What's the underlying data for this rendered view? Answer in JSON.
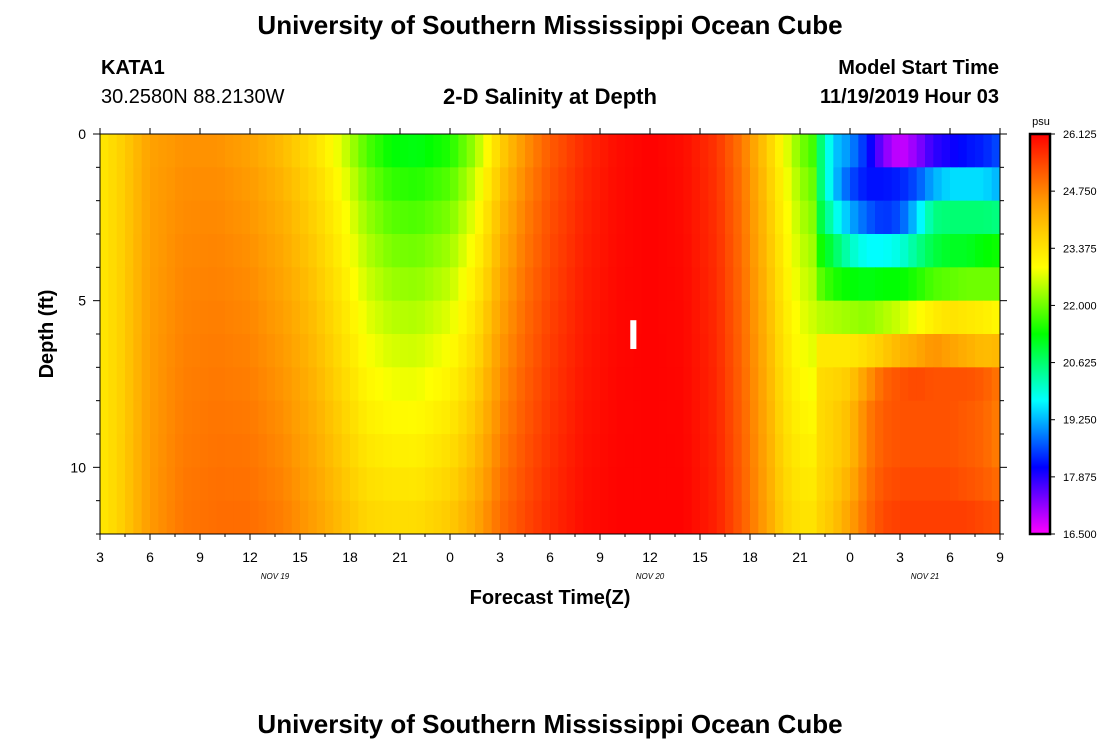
{
  "page": {
    "title_top": "University of Southern Mississippi Ocean Cube",
    "title_bottom": "University of Southern Mississippi Ocean Cube",
    "station": "KATA1",
    "coords": "30.2580N 88.2130W",
    "model_label": "Model Start Time",
    "model_time": "11/19/2019 Hour 03"
  },
  "chart_data": {
    "type": "heatmap",
    "title": "2-D Salinity at Depth",
    "xlabel": "Forecast Time(Z)",
    "ylabel": "Depth (ft)",
    "x_range": [
      0,
      54
    ],
    "x_unit": "hours since 11/19/2019 03Z",
    "x_tick_labels": [
      "3",
      "6",
      "9",
      "12",
      "15",
      "18",
      "21",
      "0",
      "3",
      "6",
      "9",
      "12",
      "15",
      "18",
      "21",
      "0",
      "3",
      "6",
      "9"
    ],
    "date_labels": [
      {
        "text": "NOV 19",
        "hour": 10.5
      },
      {
        "text": "NOV 20",
        "hour": 33
      },
      {
        "text": "NOV 21",
        "hour": 49.5
      }
    ],
    "y_range": [
      0,
      12
    ],
    "y_tick_labels": [
      "0",
      "5",
      "10"
    ],
    "y_tick_values": [
      0,
      5,
      10
    ],
    "marker": {
      "text": "I",
      "hour": 32,
      "depth": 6
    },
    "colorbar": {
      "unit": "psu",
      "min": 16.5,
      "max": 26.125,
      "labels": [
        "26.125",
        "24.750",
        "23.375",
        "22.000",
        "20.625",
        "19.250",
        "17.875",
        "16.500"
      ],
      "colors": [
        "#ff00ff",
        "#8000ff",
        "#0000ff",
        "#0080ff",
        "#00ffff",
        "#00ff80",
        "#00ff00",
        "#80ff00",
        "#ffff00",
        "#ffd000",
        "#ff9900",
        "#ff5000",
        "#ff0000"
      ]
    },
    "depth_levels_ft": [
      0.5,
      1.5,
      2.5,
      3.5,
      4.5,
      5.5,
      6.5,
      7.5,
      8.5,
      9.5,
      10.5,
      11.5
    ],
    "base_profile": {
      "hours": [
        0,
        1,
        3,
        5,
        7,
        9,
        11,
        13,
        14.5,
        16,
        17.5,
        19,
        21,
        22.5,
        24,
        25.5,
        27,
        29,
        31,
        33,
        35,
        37,
        38.5,
        40,
        41,
        42,
        43
      ],
      "surface_psu": [
        23.3,
        23.6,
        24.4,
        24.6,
        24.6,
        24.4,
        24.0,
        23.4,
        22.7,
        21.8,
        21.3,
        21.2,
        21.5,
        22.3,
        23.7,
        24.6,
        25.2,
        25.7,
        26.0,
        26.125,
        26.0,
        25.6,
        24.9,
        23.8,
        22.9,
        22.1,
        21.6
      ],
      "bottom_psu": [
        23.3,
        23.6,
        24.5,
        24.9,
        25.0,
        25.0,
        24.8,
        24.4,
        24.0,
        23.6,
        23.5,
        23.5,
        23.8,
        24.3,
        25.0,
        25.4,
        25.7,
        26.0,
        26.1,
        26.1,
        26.1,
        25.8,
        25.2,
        24.4,
        23.7,
        23.4,
        23.4
      ]
    },
    "late_columns": {
      "hours": [
        43,
        44,
        45,
        46,
        47,
        48,
        49,
        50,
        51,
        52,
        53,
        54
      ],
      "rows": [
        [
          21.0,
          19.4,
          19.0,
          18.3,
          17.3,
          16.8,
          17.2,
          17.8,
          18.0,
          18.2,
          18.3,
          18.6
        ],
        [
          21.0,
          19.4,
          18.6,
          18.2,
          18.2,
          18.3,
          18.6,
          19.2,
          19.5,
          19.5,
          19.5,
          19.2
        ],
        [
          21.2,
          20.0,
          19.2,
          18.7,
          18.4,
          18.6,
          19.4,
          20.5,
          20.6,
          20.6,
          20.6,
          20.5
        ],
        [
          21.6,
          20.8,
          20.1,
          19.7,
          19.7,
          19.9,
          20.4,
          20.9,
          21.1,
          21.1,
          21.3,
          21.4
        ],
        [
          22.0,
          21.5,
          21.3,
          21.2,
          21.3,
          21.3,
          21.5,
          21.8,
          21.9,
          22.0,
          22.0,
          22.0
        ],
        [
          22.5,
          22.4,
          22.3,
          22.2,
          22.4,
          22.6,
          22.9,
          23.2,
          23.4,
          23.3,
          23.2,
          23.0
        ],
        [
          23.3,
          23.3,
          23.3,
          23.5,
          23.8,
          24.1,
          24.3,
          24.6,
          24.4,
          24.2,
          24.0,
          24.1
        ],
        [
          23.5,
          23.6,
          23.8,
          24.5,
          25.1,
          25.3,
          25.4,
          25.3,
          25.3,
          25.3,
          25.2,
          24.9
        ],
        [
          23.5,
          23.7,
          24.0,
          24.8,
          25.2,
          25.3,
          25.3,
          25.3,
          25.3,
          25.2,
          25.1,
          24.8
        ],
        [
          23.5,
          23.7,
          24.0,
          24.8,
          25.2,
          25.3,
          25.3,
          25.3,
          25.3,
          25.2,
          25.1,
          24.8
        ],
        [
          23.5,
          23.8,
          24.2,
          24.9,
          25.3,
          25.4,
          25.4,
          25.4,
          25.4,
          25.3,
          25.2,
          25.0
        ],
        [
          23.6,
          23.9,
          24.4,
          25.0,
          25.4,
          25.5,
          25.5,
          25.5,
          25.5,
          25.5,
          25.4,
          25.3
        ]
      ]
    }
  }
}
